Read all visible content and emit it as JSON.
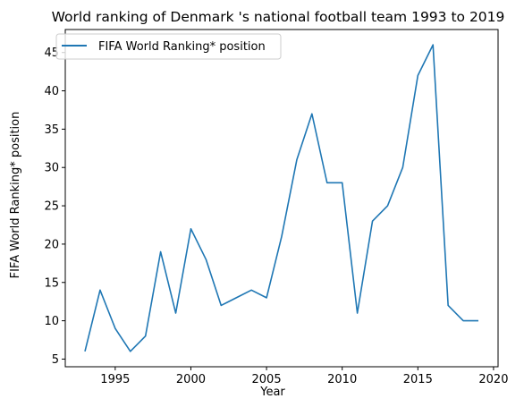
{
  "chart_data": {
    "type": "line",
    "title": "World ranking of Denmark 's national football team 1993 to 2019",
    "xlabel": "Year",
    "ylabel": "FIFA World Ranking* position",
    "x": [
      1993,
      1994,
      1995,
      1996,
      1997,
      1998,
      1999,
      2000,
      2001,
      2002,
      2003,
      2004,
      2005,
      2006,
      2007,
      2008,
      2009,
      2010,
      2011,
      2012,
      2013,
      2014,
      2015,
      2016,
      2017,
      2018,
      2019
    ],
    "series": [
      {
        "name": "FIFA World Ranking* position",
        "color": "#1f77b4",
        "values": [
          6,
          14,
          9,
          6,
          8,
          19,
          11,
          22,
          18,
          12,
          13,
          14,
          13,
          21,
          31,
          37,
          28,
          28,
          11,
          23,
          25,
          30,
          42,
          46,
          12,
          10,
          10
        ]
      }
    ],
    "xlim": [
      1991.7,
      2020.3
    ],
    "ylim": [
      4.0,
      48.0
    ],
    "xticks": [
      1995,
      2000,
      2005,
      2010,
      2015,
      2020
    ],
    "yticks": [
      5,
      10,
      15,
      20,
      25,
      30,
      35,
      40,
      45
    ],
    "grid": false,
    "legend": "upper-left"
  }
}
